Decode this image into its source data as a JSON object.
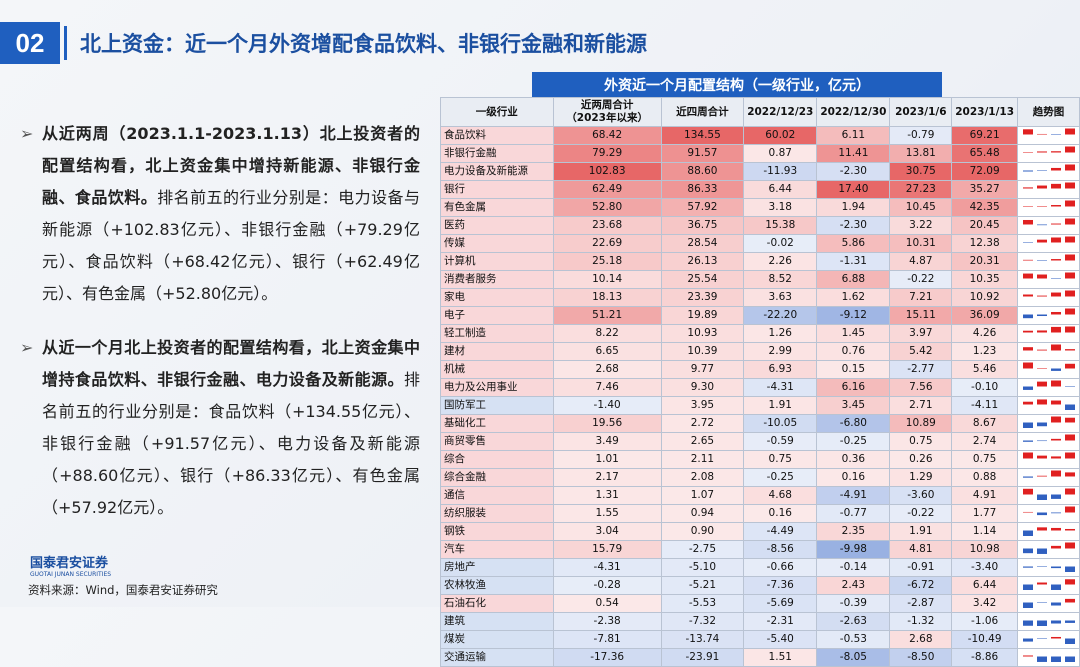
{
  "header": {
    "number": "02",
    "title": "北上资金：近一个月外资增配食品饮料、非银行金融和新能源"
  },
  "bullets": [
    {
      "bold": "从近两周（2023.1.1-2023.1.13）北上投资者的配置结构看，北上资金集中增持新能源、非银行金融、食品饮料。",
      "text": "排名前五的行业分别是：电力设备与新能源（+102.83亿元）、非银行金融（+79.29亿元）、食品饮料（+68.42亿元）、银行（+62.49亿元）、有色金属（+52.80亿元）。"
    },
    {
      "bold": "从近一个月北上投资者的配置结构看，北上资金集中增持食品饮料、非银行金融、电力设备及新能源。",
      "text": "排名前五的行业分别是：食品饮料（+134.55亿元）、非银行金融（+91.57亿元）、电力设备及新能源（+88.60亿元）、银行（+86.33亿元）、有色金属（+57.92亿元）。"
    }
  ],
  "table": {
    "caption": "外资近一个月配置结构（一级行业，亿元）",
    "columns": [
      "一级行业",
      "近两周合计\n（2023年以来）",
      "近四周合计",
      "2022/12/23",
      "2022/12/30",
      "2023/1/6",
      "2023/1/13",
      "趋势图"
    ],
    "rows": [
      [
        "食品饮料",
        "68.42",
        "134.55",
        "60.02",
        "6.11",
        "-0.79",
        "69.21"
      ],
      [
        "非银行金融",
        "79.29",
        "91.57",
        "0.87",
        "11.41",
        "13.81",
        "65.48"
      ],
      [
        "电力设备及新能源",
        "102.83",
        "88.60",
        "-11.93",
        "-2.30",
        "30.75",
        "72.09"
      ],
      [
        "银行",
        "62.49",
        "86.33",
        "6.44",
        "17.40",
        "27.23",
        "35.27"
      ],
      [
        "有色金属",
        "52.80",
        "57.92",
        "3.18",
        "1.94",
        "10.45",
        "42.35"
      ],
      [
        "医药",
        "23.68",
        "36.75",
        "15.38",
        "-2.30",
        "3.22",
        "20.45"
      ],
      [
        "传媒",
        "22.69",
        "28.54",
        "-0.02",
        "5.86",
        "10.31",
        "12.38"
      ],
      [
        "计算机",
        "25.18",
        "26.13",
        "2.26",
        "-1.31",
        "4.87",
        "20.31"
      ],
      [
        "消费者服务",
        "10.14",
        "25.54",
        "8.52",
        "6.88",
        "-0.22",
        "10.35"
      ],
      [
        "家电",
        "18.13",
        "23.39",
        "3.63",
        "1.62",
        "7.21",
        "10.92"
      ],
      [
        "电子",
        "51.21",
        "19.89",
        "-22.20",
        "-9.12",
        "15.11",
        "36.09"
      ],
      [
        "轻工制造",
        "8.22",
        "10.93",
        "1.26",
        "1.45",
        "3.97",
        "4.26"
      ],
      [
        "建材",
        "6.65",
        "10.39",
        "2.99",
        "0.76",
        "5.42",
        "1.23"
      ],
      [
        "机械",
        "2.68",
        "9.77",
        "6.93",
        "0.15",
        "-2.77",
        "5.46"
      ],
      [
        "电力及公用事业",
        "7.46",
        "9.30",
        "-4.31",
        "6.16",
        "7.56",
        "-0.10"
      ],
      [
        "国防军工",
        "-1.40",
        "3.95",
        "1.91",
        "3.45",
        "2.71",
        "-4.11"
      ],
      [
        "基础化工",
        "19.56",
        "2.72",
        "-10.05",
        "-6.80",
        "10.89",
        "8.67"
      ],
      [
        "商贸零售",
        "3.49",
        "2.65",
        "-0.59",
        "-0.25",
        "0.75",
        "2.74"
      ],
      [
        "综合",
        "1.01",
        "2.11",
        "0.75",
        "0.36",
        "0.26",
        "0.75"
      ],
      [
        "综合金融",
        "2.17",
        "2.08",
        "-0.25",
        "0.16",
        "1.29",
        "0.88"
      ],
      [
        "通信",
        "1.31",
        "1.07",
        "4.68",
        "-4.91",
        "-3.60",
        "4.91"
      ],
      [
        "纺织服装",
        "1.55",
        "0.94",
        "0.16",
        "-0.77",
        "-0.22",
        "1.77"
      ],
      [
        "钢铁",
        "3.04",
        "0.90",
        "-4.49",
        "2.35",
        "1.91",
        "1.14"
      ],
      [
        "汽车",
        "15.79",
        "-2.75",
        "-8.56",
        "-9.98",
        "4.81",
        "10.98"
      ],
      [
        "房地产",
        "-4.31",
        "-5.10",
        "-0.66",
        "-0.14",
        "-0.91",
        "-3.40"
      ],
      [
        "农林牧渔",
        "-0.28",
        "-5.21",
        "-7.36",
        "2.43",
        "-6.72",
        "6.44"
      ],
      [
        "石油石化",
        "0.54",
        "-5.53",
        "-5.69",
        "-0.39",
        "-2.87",
        "3.42"
      ],
      [
        "建筑",
        "-2.38",
        "-7.32",
        "-2.31",
        "-2.63",
        "-1.32",
        "-1.06"
      ],
      [
        "煤炭",
        "-7.81",
        "-13.74",
        "-5.40",
        "-0.53",
        "2.68",
        "-10.49"
      ],
      [
        "交通运输",
        "-17.36",
        "-23.91",
        "1.51",
        "-8.05",
        "-8.50",
        "-8.86"
      ]
    ]
  },
  "footer": {
    "logo": "国泰君安证券",
    "logo_en": "GUOTAI JUNAN SECURITIES",
    "source": "资料来源：Wind，国泰君安证券研究"
  }
}
